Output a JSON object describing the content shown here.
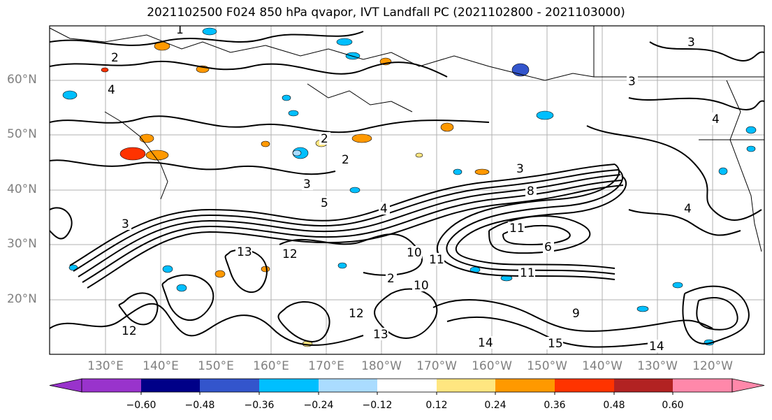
{
  "figure": {
    "title": "2021102500 F024 850 hPa qvapor, IVT Landfall PC (2021102800 - 2021103000)"
  },
  "map": {
    "latitude_labels": [
      "60°N",
      "50°N",
      "40°N",
      "30°N",
      "20°N"
    ],
    "longitude_labels": [
      "130°E",
      "140°E",
      "150°E",
      "160°E",
      "170°E",
      "180°W",
      "170°W",
      "160°W",
      "150°W",
      "140°W",
      "130°W",
      "120°W"
    ],
    "contour_labels": [
      "1",
      "2",
      "2",
      "2",
      "2",
      "3",
      "3",
      "3",
      "3",
      "3",
      "4",
      "4",
      "4",
      "4",
      "5",
      "6",
      "8",
      "9",
      "10",
      "10",
      "11",
      "11",
      "11",
      "12",
      "12",
      "12",
      "13",
      "13",
      "14",
      "14",
      "15"
    ],
    "grid": true
  },
  "colorbar": {
    "tick_labels": [
      "−0.60",
      "−0.48",
      "−0.36",
      "−0.24",
      "−0.12",
      "0.12",
      "0.24",
      "0.36",
      "0.48",
      "0.60"
    ],
    "colors": [
      "#9933cc",
      "#000088",
      "#3355cc",
      "#00bfff",
      "#aadcff",
      "#ffffff",
      "#ffe680",
      "#ff9900",
      "#ff3300",
      "#b22222",
      "#ff88aa"
    ],
    "extend": "both"
  }
}
